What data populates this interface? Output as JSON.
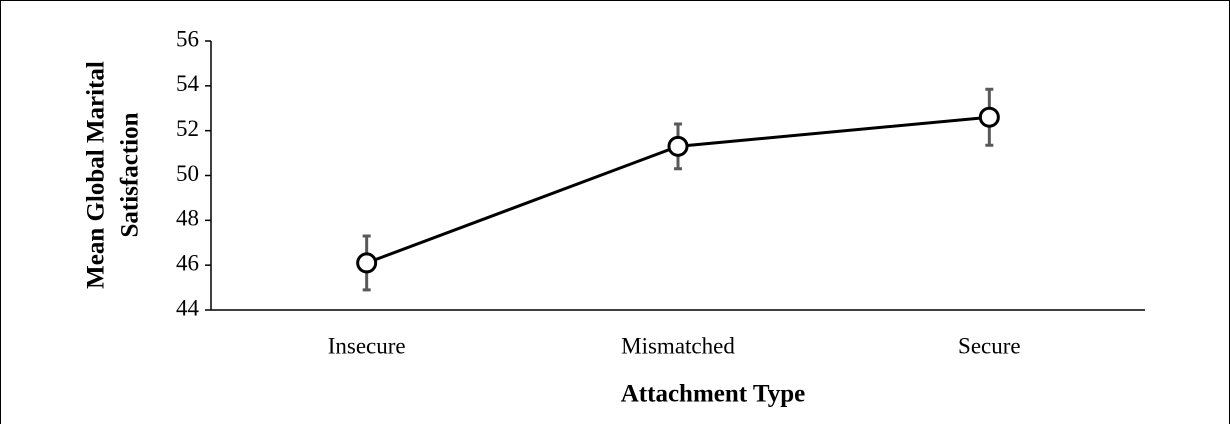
{
  "chart_data": {
    "type": "line",
    "y_label": [
      "Mean Global Marital",
      "Satisfaction"
    ],
    "x_label": "Attachment Type",
    "categories": [
      "Insecure",
      "Mismatched",
      "Secure"
    ],
    "series": [
      {
        "color": "#000000",
        "values": [
          46.1,
          51.3,
          52.6
        ],
        "errors": [
          1.2,
          1.0,
          1.25
        ],
        "error_color": "#595959"
      }
    ],
    "ylim": [
      44,
      56
    ],
    "yticks": [
      44,
      46,
      48,
      50,
      52,
      54,
      56
    ]
  }
}
